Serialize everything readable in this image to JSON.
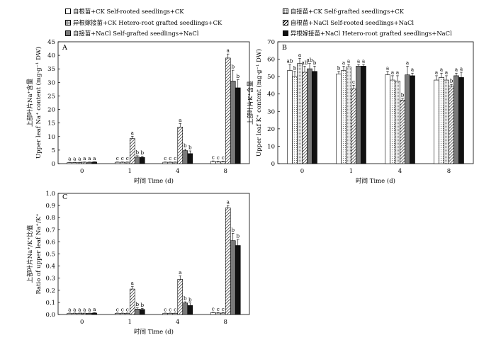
{
  "legend": [
    {
      "label": "自根苗+CK  Self-rooted seedlings+CK",
      "fill": "white"
    },
    {
      "label": "自接苗+CK  Self-grafted seedlings+CK",
      "fill": "dots"
    },
    {
      "label": "异根嫁接苗+CK  Hetero-root grafted seedlings+CK",
      "fill": "grid"
    },
    {
      "label": "自根苗+NaCl  Self-rooted seedlings+NaCl",
      "fill": "hatch"
    },
    {
      "label": "自接苗+NaCl  Self-grafted seedlings+NaCl",
      "fill": "gray"
    },
    {
      "label": "异根嫁接苗+NaCl  Hetero-root grafted seedlings+NaCl",
      "fill": "black"
    }
  ],
  "colors": {
    "gray": "#7a7a7a",
    "black": "#111111",
    "white": "#ffffff"
  },
  "chart_data": [
    {
      "type": "bar",
      "panel": "A",
      "categories": [
        "0",
        "1",
        "4",
        "8"
      ],
      "xlabel": "时间 Time (d)",
      "ylabel_cn": "上部叶片Na⁺含量",
      "ylabel_en": "Upper leaf Na⁺ content (mg·g⁻¹ DW)",
      "ylim": [
        0,
        45
      ],
      "yticks": [
        0,
        5,
        10,
        15,
        20,
        25,
        30,
        35,
        40,
        45
      ],
      "series": [
        {
          "name": "自根苗+CK  Self-rooted seedlings+CK",
          "values": [
            0.4,
            0.5,
            0.5,
            0.8
          ],
          "errors": [
            0.1,
            0.1,
            0.1,
            0.2
          ],
          "letters": [
            "a",
            "c",
            "c",
            "c"
          ]
        },
        {
          "name": "自接苗+CK  Self-grafted seedlings+CK",
          "values": [
            0.4,
            0.5,
            0.5,
            0.7
          ],
          "errors": [
            0.1,
            0.1,
            0.1,
            0.2
          ],
          "letters": [
            "a",
            "c",
            "c",
            "c"
          ]
        },
        {
          "name": "异根嫁接苗+CK  Hetero-root grafted seedlings+CK",
          "values": [
            0.4,
            0.5,
            0.5,
            0.7
          ],
          "errors": [
            0.1,
            0.1,
            0.1,
            0.2
          ],
          "letters": [
            "a",
            "c",
            "c",
            "c"
          ]
        },
        {
          "name": "自根苗+NaCl  Self-rooted seedlings+NaCl",
          "values": [
            0.5,
            9.3,
            13.5,
            39.0
          ],
          "errors": [
            0.1,
            0.8,
            1.3,
            1.5
          ],
          "letters": [
            "a",
            "a",
            "a",
            "a"
          ]
        },
        {
          "name": "自接苗+NaCl  Self-grafted seedlings+NaCl",
          "values": [
            0.5,
            2.4,
            4.8,
            30.5
          ],
          "errors": [
            0.1,
            0.5,
            0.6,
            4.0
          ],
          "letters": [
            "a",
            "b",
            "b",
            "b"
          ]
        },
        {
          "name": "异根嫁接苗+NaCl  Hetero-root grafted seedlings+NaCl",
          "values": [
            0.6,
            2.3,
            3.7,
            28.0
          ],
          "errors": [
            0.1,
            0.4,
            1.0,
            3.0
          ],
          "letters": [
            "a",
            "b",
            "b",
            "b"
          ]
        }
      ]
    },
    {
      "type": "bar",
      "panel": "B",
      "categories": [
        "0",
        "1",
        "4",
        "8"
      ],
      "xlabel": "时间 Time (d)",
      "ylabel_cn": "上部叶片K⁺含量",
      "ylabel_en": "Upper leaf K⁺ content (mg·g⁻¹ DW)",
      "ylim": [
        0,
        70
      ],
      "yticks": [
        0,
        10,
        20,
        30,
        40,
        50,
        60,
        70
      ],
      "series": [
        {
          "name": "自根苗+CK  Self-rooted seedlings+CK",
          "values": [
            53.5,
            51.5,
            51.0,
            48.0
          ],
          "errors": [
            3.5,
            1.5,
            2.0,
            2.5
          ],
          "letters": [
            "ab",
            "b",
            "a",
            "a"
          ]
        },
        {
          "name": "自接苗+CK  Self-grafted seedlings+CK",
          "values": [
            50.0,
            53.5,
            48.0,
            49.5
          ],
          "errors": [
            3.0,
            2.5,
            2.5,
            2.5
          ],
          "letters": [
            "b",
            "a",
            "a",
            "a"
          ]
        },
        {
          "name": "异根嫁接苗+CK  Hetero-root grafted seedlings+CK",
          "values": [
            57.5,
            55.5,
            47.5,
            48.0
          ],
          "errors": [
            3.0,
            1.5,
            3.0,
            2.5
          ],
          "letters": [
            "a",
            "a",
            "a",
            "a"
          ]
        },
        {
          "name": "自根苗+NaCl  Self-rooted seedlings+NaCl",
          "values": [
            52.5,
            43.0,
            36.5,
            44.5
          ],
          "errors": [
            3.5,
            2.0,
            1.0,
            1.0
          ],
          "letters": [
            "ab",
            "c",
            "b",
            "b"
          ]
        },
        {
          "name": "自接苗+NaCl  Self-grafted seedlings+NaCl",
          "values": [
            54.5,
            56.0,
            51.0,
            50.5
          ],
          "errors": [
            3.0,
            1.0,
            5.0,
            1.5
          ],
          "letters": [
            "ab",
            "a",
            "a",
            "a"
          ]
        },
        {
          "name": "异根嫁接苗+NaCl  Hetero-root grafted seedlings+NaCl",
          "values": [
            53.0,
            56.0,
            50.5,
            49.5
          ],
          "errors": [
            3.0,
            1.0,
            1.5,
            3.0
          ],
          "letters": [
            "b",
            "a",
            "a",
            "a"
          ]
        }
      ]
    },
    {
      "type": "bar",
      "panel": "C",
      "categories": [
        "0",
        "1",
        "4",
        "8"
      ],
      "xlabel": "时间 Time (d)",
      "ylabel_cn": "上部叶片Na⁺/K⁺比值",
      "ylabel_en": "Ratio of upper leaf Na⁺/K⁺",
      "ylim": [
        0,
        1.0
      ],
      "yticks": [
        0,
        0.1,
        0.2,
        0.3,
        0.4,
        0.5,
        0.6,
        0.7,
        0.8,
        0.9,
        1.0
      ],
      "series": [
        {
          "name": "自根苗+CK  Self-rooted seedlings+CK",
          "values": [
            0.01,
            0.01,
            0.01,
            0.015
          ],
          "errors": [
            0.002,
            0.002,
            0.002,
            0.003
          ],
          "letters": [
            "a",
            "c",
            "c",
            "c"
          ]
        },
        {
          "name": "自接苗+CK  Self-grafted seedlings+CK",
          "values": [
            0.01,
            0.01,
            0.01,
            0.012
          ],
          "errors": [
            0.002,
            0.002,
            0.002,
            0.003
          ],
          "letters": [
            "a",
            "c",
            "c",
            "c"
          ]
        },
        {
          "name": "异根嫁接苗+CK  Hetero-root grafted seedlings+CK",
          "values": [
            0.01,
            0.01,
            0.01,
            0.012
          ],
          "errors": [
            0.002,
            0.002,
            0.002,
            0.003
          ],
          "letters": [
            "a",
            "c",
            "c",
            "c"
          ]
        },
        {
          "name": "自根苗+NaCl  Self-rooted seedlings+NaCl",
          "values": [
            0.01,
            0.21,
            0.29,
            0.88
          ],
          "errors": [
            0.002,
            0.02,
            0.03,
            0.02
          ],
          "letters": [
            "a",
            "a",
            "a",
            "a"
          ]
        },
        {
          "name": "自接苗+NaCl  Self-grafted seedlings+NaCl",
          "values": [
            0.01,
            0.045,
            0.095,
            0.61
          ],
          "errors": [
            0.002,
            0.01,
            0.01,
            0.06
          ],
          "letters": [
            "a",
            "b",
            "b",
            "b"
          ]
        },
        {
          "name": "异根嫁接苗+NaCl  Hetero-root grafted seedlings+NaCl",
          "values": [
            0.012,
            0.042,
            0.075,
            0.57
          ],
          "errors": [
            0.003,
            0.008,
            0.02,
            0.05
          ],
          "letters": [
            "a",
            "b",
            "b",
            "b"
          ]
        }
      ]
    }
  ]
}
